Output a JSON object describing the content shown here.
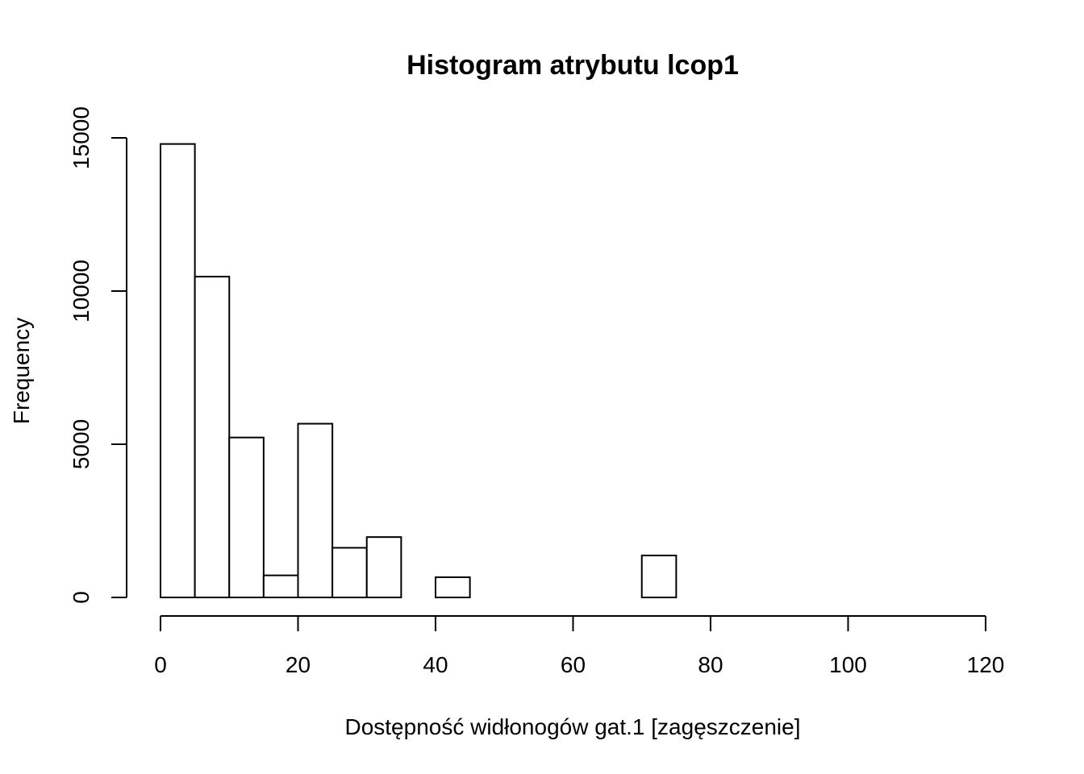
{
  "chart_data": {
    "type": "bar",
    "title": "Histogram atrybutu lcop1",
    "xlabel": "Dostępność widłonogów gat.1 [zagęszczenie]",
    "ylabel": "Frequency",
    "bin_width": 5,
    "bins": [
      {
        "x0": 0,
        "x1": 5,
        "value": 14800
      },
      {
        "x0": 5,
        "x1": 10,
        "value": 10470
      },
      {
        "x0": 10,
        "x1": 15,
        "value": 5220
      },
      {
        "x0": 15,
        "x1": 20,
        "value": 720
      },
      {
        "x0": 20,
        "x1": 25,
        "value": 5670
      },
      {
        "x0": 25,
        "x1": 30,
        "value": 1620
      },
      {
        "x0": 30,
        "x1": 35,
        "value": 1970
      },
      {
        "x0": 35,
        "x1": 40,
        "value": 0
      },
      {
        "x0": 40,
        "x1": 45,
        "value": 660
      },
      {
        "x0": 45,
        "x1": 50,
        "value": 0
      },
      {
        "x0": 50,
        "x1": 55,
        "value": 0
      },
      {
        "x0": 55,
        "x1": 60,
        "value": 0
      },
      {
        "x0": 60,
        "x1": 65,
        "value": 0
      },
      {
        "x0": 65,
        "x1": 70,
        "value": 0
      },
      {
        "x0": 70,
        "x1": 75,
        "value": 1370
      },
      {
        "x0": 75,
        "x1": 80,
        "value": 0
      },
      {
        "x0": 80,
        "x1": 85,
        "value": 0
      },
      {
        "x0": 85,
        "x1": 90,
        "value": 0
      },
      {
        "x0": 90,
        "x1": 95,
        "value": 0
      },
      {
        "x0": 95,
        "x1": 100,
        "value": 0
      },
      {
        "x0": 100,
        "x1": 105,
        "value": 0
      },
      {
        "x0": 105,
        "x1": 110,
        "value": 0
      },
      {
        "x0": 110,
        "x1": 115,
        "value": 0
      },
      {
        "x0": 115,
        "x1": 120,
        "value": 0
      }
    ],
    "xlim": [
      0,
      120
    ],
    "ylim": [
      0,
      15000
    ],
    "x_ticks": [
      0,
      20,
      40,
      60,
      80,
      100,
      120
    ],
    "y_ticks": [
      0,
      5000,
      10000,
      15000
    ],
    "x_tick_labels": [
      "0",
      "20",
      "40",
      "60",
      "80",
      "100",
      "120"
    ],
    "y_tick_labels": [
      "0",
      "5000",
      "10000",
      "15000"
    ],
    "grid": false,
    "legend": "none",
    "colors": {
      "bar_fill": "#ffffff",
      "bar_stroke": "#000000",
      "background": "#ffffff"
    }
  }
}
